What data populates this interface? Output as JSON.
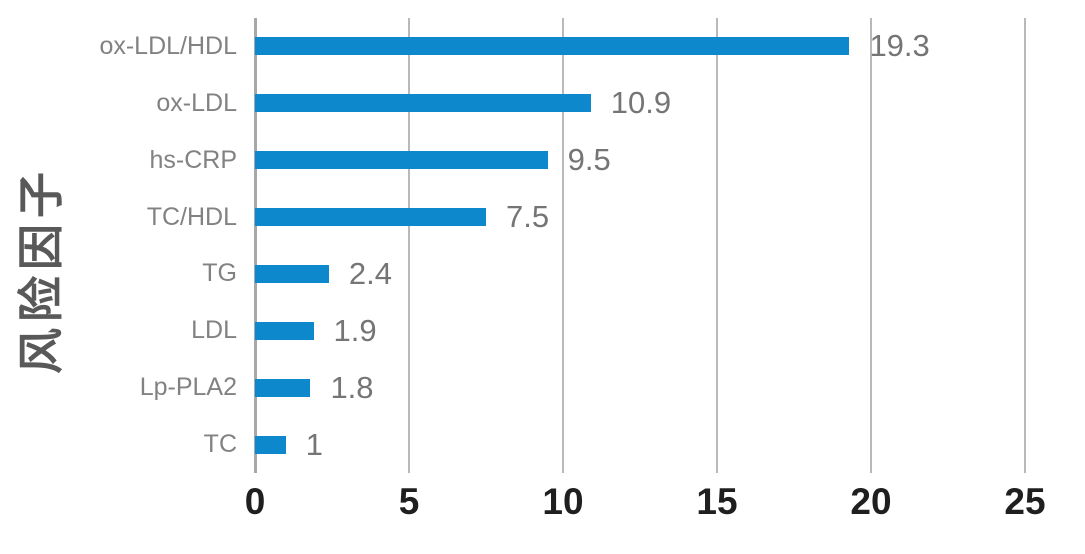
{
  "chart_data": {
    "type": "bar",
    "orientation": "horizontal",
    "title": "",
    "xlabel": "",
    "ylabel": "风险因子",
    "categories": [
      "ox-LDL/HDL",
      "ox-LDL",
      "hs-CRP",
      "TC/HDL",
      "TG",
      "LDL",
      "Lp-PLA2",
      "TC"
    ],
    "values": [
      19.3,
      10.9,
      9.5,
      7.5,
      2.4,
      1.9,
      1.8,
      1
    ],
    "value_labels": [
      "19.3",
      "10.9",
      "9.5",
      "7.5",
      "2.4",
      "1.9",
      "1.8",
      "1"
    ],
    "xlim": [
      0,
      25
    ],
    "xticks": [
      "0",
      "5",
      "10",
      "15",
      "20",
      "25"
    ],
    "grid": true,
    "legend": "none",
    "colors": {
      "bar": "#0d88cc",
      "gridline": "#b9b9b9",
      "axis_line": "#a8a8a8",
      "category_label": "#828282",
      "value_label": "#757575",
      "tick_label": "#1f1f1f",
      "axis_title": "#595959",
      "background": "#ffffff"
    }
  }
}
